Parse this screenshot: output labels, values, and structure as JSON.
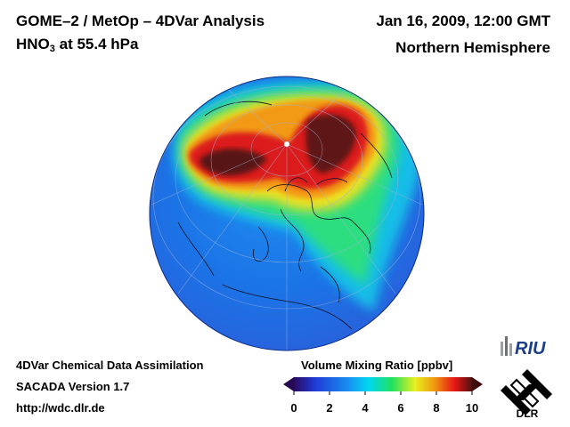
{
  "header": {
    "title": "GOME–2 / MetOp – 4DVar Analysis",
    "species_prefix": "HNO",
    "species_subscript": "3",
    "species_suffix": " at 55.4 hPa",
    "datetime": "Jan 16, 2009, 12:00 GMT",
    "region": "Northern Hemisphere"
  },
  "footer": {
    "line1": "4DVar Chemical Data Assimilation",
    "line2": "SACADA Version 1.7",
    "line3": "http://wdc.dlr.de"
  },
  "colorbar": {
    "title": "Volume Mixing Ratio [ppbv]",
    "ticks": [
      "0",
      "2",
      "4",
      "6",
      "8",
      "10"
    ],
    "min": 0,
    "max": 10,
    "colors": [
      "#2a0a5e",
      "#1e3cd8",
      "#1a8cf0",
      "#00d8f0",
      "#20e060",
      "#e8f020",
      "#f0a010",
      "#e81818",
      "#501010"
    ]
  },
  "logos": {
    "riu": "RIU",
    "dlr": "DLR"
  },
  "map": {
    "projection": "orthographic",
    "background_color": "#1a78ec",
    "high_color": "#d01818",
    "core_color": "#4a1414"
  }
}
